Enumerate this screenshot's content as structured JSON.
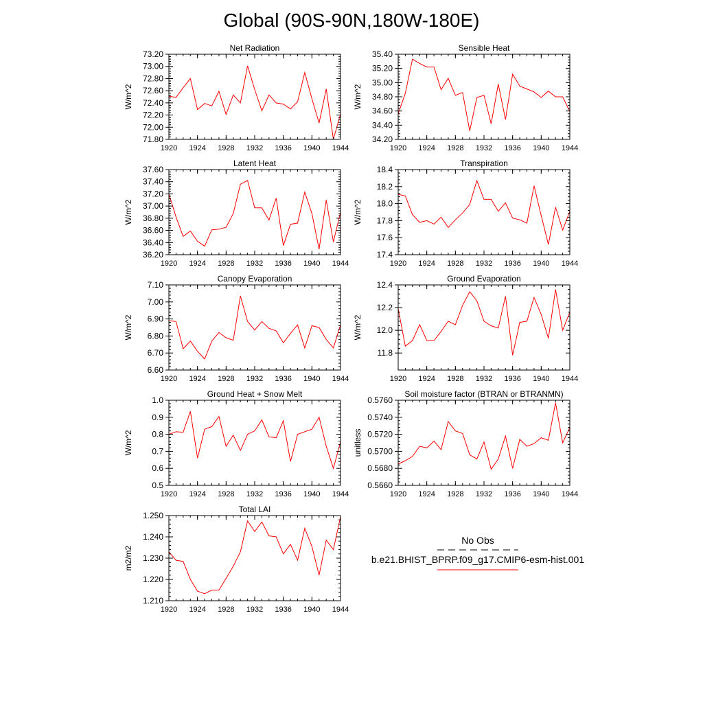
{
  "title": "Global (90S-90N,180W-180E)",
  "colors": {
    "series": "#ff0000",
    "axis": "#000000",
    "obs": "#000000"
  },
  "legend": {
    "obs_label": "No Obs",
    "model_label": "b.e21.BHIST_BPRP.f09_g17.CMIP6-esm-hist.001"
  },
  "chart_data": [
    {
      "type": "line",
      "title": "Net Radiation",
      "ylabel": "W/m^2",
      "xlim": [
        1920,
        1944
      ],
      "ylim": [
        71.8,
        73.2
      ],
      "xticks": [
        1920,
        1924,
        1928,
        1932,
        1936,
        1940,
        1944
      ],
      "yticks": [
        71.8,
        72.0,
        72.2,
        72.4,
        72.6,
        72.8,
        73.0,
        73.2
      ],
      "ytick_labels": [
        "71.80",
        "72.00",
        "72.20",
        "72.40",
        "72.60",
        "72.80",
        "73.00",
        "73.20"
      ],
      "x": [
        1920,
        1921,
        1922,
        1923,
        1924,
        1925,
        1926,
        1927,
        1928,
        1929,
        1930,
        1931,
        1932,
        1933,
        1934,
        1935,
        1936,
        1937,
        1938,
        1939,
        1940,
        1941,
        1942,
        1943,
        1944
      ],
      "values": [
        72.51,
        72.49,
        72.65,
        72.8,
        72.29,
        72.39,
        72.35,
        72.59,
        72.21,
        72.53,
        72.4,
        73.01,
        72.62,
        72.27,
        72.53,
        72.4,
        72.38,
        72.3,
        72.42,
        72.9,
        72.47,
        72.07,
        72.63,
        71.8,
        72.22
      ]
    },
    {
      "type": "line",
      "title": "Sensible Heat",
      "ylabel": "W/m^2",
      "xlim": [
        1920,
        1944
      ],
      "ylim": [
        34.2,
        35.4
      ],
      "xticks": [
        1920,
        1924,
        1928,
        1932,
        1936,
        1940,
        1944
      ],
      "yticks": [
        34.2,
        34.4,
        34.6,
        34.8,
        35.0,
        35.2,
        35.4
      ],
      "ytick_labels": [
        "34.20",
        "34.40",
        "34.60",
        "34.80",
        "35.00",
        "35.20",
        "35.40"
      ],
      "x": [
        1920,
        1921,
        1922,
        1923,
        1924,
        1925,
        1926,
        1927,
        1928,
        1929,
        1930,
        1931,
        1932,
        1933,
        1934,
        1935,
        1936,
        1937,
        1938,
        1939,
        1940,
        1941,
        1942,
        1943,
        1944
      ],
      "values": [
        34.56,
        34.85,
        35.33,
        35.27,
        35.22,
        35.22,
        34.9,
        35.06,
        34.82,
        34.86,
        34.32,
        34.79,
        34.82,
        34.42,
        34.98,
        34.48,
        35.12,
        34.95,
        34.91,
        34.87,
        34.79,
        34.88,
        34.8,
        34.8,
        34.59
      ]
    },
    {
      "type": "line",
      "title": "Latent Heat",
      "ylabel": "W/m^2",
      "xlim": [
        1920,
        1944
      ],
      "ylim": [
        36.2,
        37.6
      ],
      "xticks": [
        1920,
        1924,
        1928,
        1932,
        1936,
        1940,
        1944
      ],
      "yticks": [
        36.2,
        36.4,
        36.6,
        36.8,
        37.0,
        37.2,
        37.4,
        37.6
      ],
      "ytick_labels": [
        "36.20",
        "36.40",
        "36.60",
        "36.80",
        "37.00",
        "37.20",
        "37.40",
        "37.60"
      ],
      "x": [
        1920,
        1921,
        1922,
        1923,
        1924,
        1925,
        1926,
        1927,
        1928,
        1929,
        1930,
        1931,
        1932,
        1933,
        1934,
        1935,
        1936,
        1937,
        1938,
        1939,
        1940,
        1941,
        1942,
        1943,
        1944
      ],
      "values": [
        37.2,
        36.82,
        36.5,
        36.59,
        36.42,
        36.34,
        36.61,
        36.62,
        36.65,
        36.88,
        37.36,
        37.42,
        36.97,
        36.97,
        36.77,
        37.13,
        36.35,
        36.7,
        36.72,
        37.23,
        36.88,
        36.29,
        37.1,
        36.41,
        36.9
      ]
    },
    {
      "type": "line",
      "title": "Transpiration",
      "ylabel": "W/m^2",
      "xlim": [
        1920,
        1944
      ],
      "ylim": [
        17.4,
        18.4
      ],
      "xticks": [
        1920,
        1924,
        1928,
        1932,
        1936,
        1940,
        1944
      ],
      "yticks": [
        17.4,
        17.6,
        17.8,
        18.0,
        18.2,
        18.4
      ],
      "ytick_labels": [
        "17.4",
        "17.6",
        "17.8",
        "18.0",
        "18.2",
        "18.4"
      ],
      "x": [
        1920,
        1921,
        1922,
        1923,
        1924,
        1925,
        1926,
        1927,
        1928,
        1929,
        1930,
        1931,
        1932,
        1933,
        1934,
        1935,
        1936,
        1937,
        1938,
        1939,
        1940,
        1941,
        1942,
        1943,
        1944
      ],
      "values": [
        18.11,
        18.09,
        17.87,
        17.78,
        17.8,
        17.76,
        17.84,
        17.72,
        17.81,
        17.89,
        17.99,
        18.27,
        18.05,
        18.05,
        17.91,
        18.01,
        17.83,
        17.81,
        17.77,
        18.21,
        17.86,
        17.52,
        17.96,
        17.69,
        17.91
      ]
    },
    {
      "type": "line",
      "title": "Canopy Evaporation",
      "ylabel": "W/m^2",
      "xlim": [
        1920,
        1944
      ],
      "ylim": [
        6.6,
        7.1
      ],
      "xticks": [
        1920,
        1924,
        1928,
        1932,
        1936,
        1940,
        1944
      ],
      "yticks": [
        6.6,
        6.7,
        6.8,
        6.9,
        7.0,
        7.1
      ],
      "ytick_labels": [
        "6.60",
        "6.70",
        "6.80",
        "6.90",
        "7.00",
        "7.10"
      ],
      "x": [
        1920,
        1921,
        1922,
        1923,
        1924,
        1925,
        1926,
        1927,
        1928,
        1929,
        1930,
        1931,
        1932,
        1933,
        1934,
        1935,
        1936,
        1937,
        1938,
        1939,
        1940,
        1941,
        1942,
        1943,
        1944
      ],
      "values": [
        6.89,
        6.885,
        6.725,
        6.77,
        6.71,
        6.665,
        6.77,
        6.82,
        6.79,
        6.775,
        7.035,
        6.885,
        6.835,
        6.885,
        6.845,
        6.83,
        6.76,
        6.815,
        6.865,
        6.73,
        6.86,
        6.85,
        6.78,
        6.73,
        6.865
      ]
    },
    {
      "type": "line",
      "title": "Ground Evaporation",
      "ylabel": "W/m^2",
      "xlim": [
        1920,
        1944
      ],
      "ylim": [
        11.65,
        12.4
      ],
      "xticks": [
        1920,
        1924,
        1928,
        1932,
        1936,
        1940,
        1944
      ],
      "yticks": [
        11.8,
        12.0,
        12.2,
        12.4
      ],
      "ytick_labels": [
        "11.8",
        "12.0",
        "12.2",
        "12.4"
      ],
      "x": [
        1920,
        1921,
        1922,
        1923,
        1924,
        1925,
        1926,
        1927,
        1928,
        1929,
        1930,
        1931,
        1932,
        1933,
        1934,
        1935,
        1936,
        1937,
        1938,
        1939,
        1940,
        1941,
        1942,
        1943,
        1944
      ],
      "values": [
        12.19,
        11.86,
        11.91,
        12.05,
        11.91,
        11.91,
        11.99,
        12.08,
        12.05,
        12.22,
        12.34,
        12.26,
        12.08,
        12.04,
        12.02,
        12.3,
        11.78,
        12.07,
        12.08,
        12.29,
        12.14,
        11.93,
        12.36,
        12.0,
        12.16
      ]
    },
    {
      "type": "line",
      "title": "Ground Heat + Snow Melt",
      "ylabel": "W/m^2",
      "xlim": [
        1920,
        1944
      ],
      "ylim": [
        0.5,
        1.0
      ],
      "xticks": [
        1920,
        1924,
        1928,
        1932,
        1936,
        1940,
        1944
      ],
      "yticks": [
        0.5,
        0.6,
        0.7,
        0.8,
        0.9,
        1.0
      ],
      "ytick_labels": [
        "0.5",
        "0.6",
        "0.7",
        "0.8",
        "0.9",
        "1.0"
      ],
      "x": [
        1920,
        1921,
        1922,
        1923,
        1924,
        1925,
        1926,
        1927,
        1928,
        1929,
        1930,
        1931,
        1932,
        1933,
        1934,
        1935,
        1936,
        1937,
        1938,
        1939,
        1940,
        1941,
        1942,
        1943,
        1944
      ],
      "values": [
        0.8,
        0.815,
        0.812,
        0.935,
        0.66,
        0.83,
        0.845,
        0.905,
        0.73,
        0.795,
        0.705,
        0.8,
        0.82,
        0.885,
        0.785,
        0.78,
        0.88,
        0.64,
        0.8,
        0.815,
        0.83,
        0.9,
        0.73,
        0.6,
        0.755
      ]
    },
    {
      "type": "line",
      "title": "Soil moisture factor (BTRAN or BTRANMN)",
      "ylabel": "unitless",
      "xlim": [
        1920,
        1944
      ],
      "ylim": [
        0.566,
        0.576
      ],
      "xticks": [
        1920,
        1924,
        1928,
        1932,
        1936,
        1940,
        1944
      ],
      "yticks": [
        0.566,
        0.568,
        0.57,
        0.572,
        0.574,
        0.576
      ],
      "ytick_labels": [
        "0.5660",
        "0.5680",
        "0.5700",
        "0.5720",
        "0.5740",
        "0.5760"
      ],
      "x": [
        1920,
        1921,
        1922,
        1923,
        1924,
        1925,
        1926,
        1927,
        1928,
        1929,
        1930,
        1931,
        1932,
        1933,
        1934,
        1935,
        1936,
        1937,
        1938,
        1939,
        1940,
        1941,
        1942,
        1943,
        1944
      ],
      "values": [
        0.5685,
        0.5689,
        0.5694,
        0.5706,
        0.5704,
        0.5712,
        0.5702,
        0.5735,
        0.5724,
        0.5721,
        0.5696,
        0.5691,
        0.5711,
        0.5679,
        0.5691,
        0.5718,
        0.568,
        0.5714,
        0.5706,
        0.5709,
        0.5716,
        0.5713,
        0.5757,
        0.571,
        0.5728
      ]
    },
    {
      "type": "line",
      "title": "Total LAI",
      "ylabel": "m2/m2",
      "xlim": [
        1920,
        1944
      ],
      "ylim": [
        1.21,
        1.25
      ],
      "xticks": [
        1920,
        1924,
        1928,
        1932,
        1936,
        1940,
        1944
      ],
      "yticks": [
        1.21,
        1.22,
        1.23,
        1.24,
        1.25
      ],
      "ytick_labels": [
        "1.210",
        "1.220",
        "1.230",
        "1.240",
        "1.250"
      ],
      "x": [
        1920,
        1921,
        1922,
        1923,
        1924,
        1925,
        1926,
        1927,
        1928,
        1929,
        1930,
        1931,
        1932,
        1933,
        1934,
        1935,
        1936,
        1937,
        1938,
        1939,
        1940,
        1941,
        1942,
        1943,
        1944
      ],
      "values": [
        1.233,
        1.229,
        1.2285,
        1.22,
        1.2145,
        1.2133,
        1.215,
        1.215,
        1.2205,
        1.2262,
        1.233,
        1.2475,
        1.2425,
        1.247,
        1.2405,
        1.24,
        1.232,
        1.2365,
        1.229,
        1.244,
        1.2355,
        1.222,
        1.2385,
        1.234,
        1.2495
      ]
    }
  ]
}
